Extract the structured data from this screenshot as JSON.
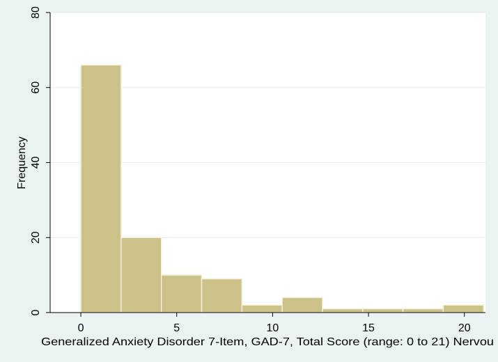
{
  "chart_data": {
    "type": "bar",
    "title": "",
    "xlabel": "Generalized Anxiety Disorder 7-Item, GAD-7, Total Score (range: 0 to 21)  Nervou",
    "ylabel": "Frequency",
    "xlim": [
      -1.6,
      21.1
    ],
    "ylim": [
      0,
      80
    ],
    "xticks": [
      0,
      5,
      10,
      15,
      20
    ],
    "yticks": [
      0,
      20,
      40,
      60,
      80
    ],
    "grid": true,
    "bins": [
      {
        "start": 0,
        "end": 2.1,
        "count": 66
      },
      {
        "start": 2.1,
        "end": 4.2,
        "count": 20
      },
      {
        "start": 4.2,
        "end": 6.3,
        "count": 10
      },
      {
        "start": 6.3,
        "end": 8.4,
        "count": 9
      },
      {
        "start": 8.4,
        "end": 10.5,
        "count": 2
      },
      {
        "start": 10.5,
        "end": 12.6,
        "count": 4
      },
      {
        "start": 12.6,
        "end": 14.7,
        "count": 1
      },
      {
        "start": 14.7,
        "end": 16.8,
        "count": 1
      },
      {
        "start": 16.8,
        "end": 18.9,
        "count": 1
      },
      {
        "start": 18.9,
        "end": 21.0,
        "count": 2
      }
    ],
    "colors": {
      "bar_fill": "#cdc18a",
      "bar_stroke": "#f3efd8",
      "plot_bg": "#ffffff",
      "outer_bg": "#eaf2f3",
      "grid": "#e6ecef",
      "axis": "#000000"
    }
  }
}
